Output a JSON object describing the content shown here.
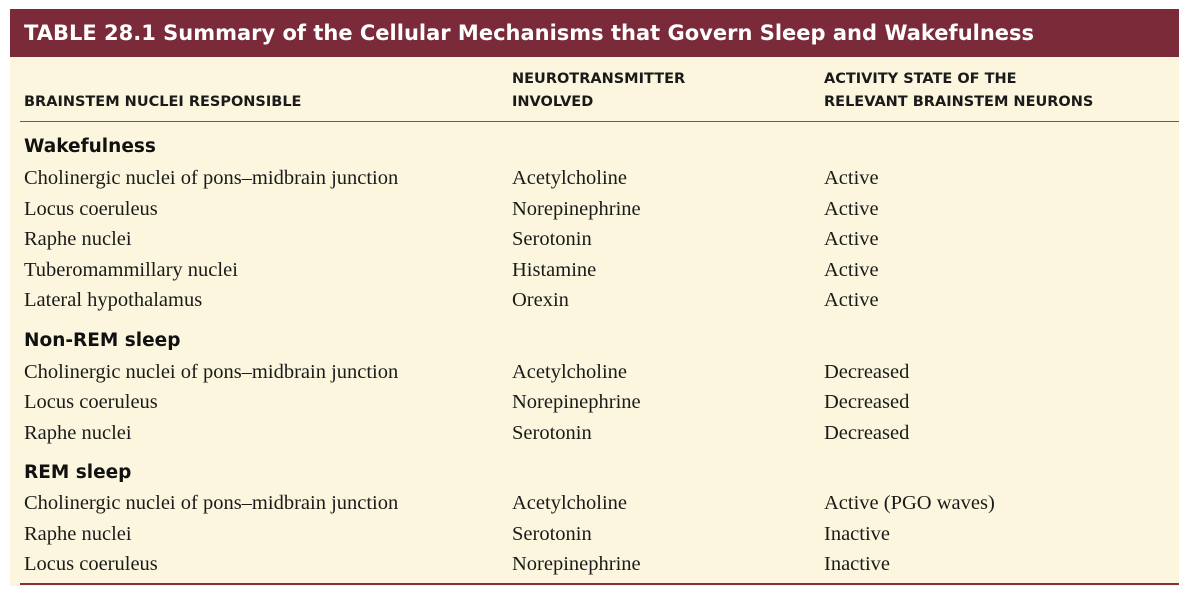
{
  "title": "TABLE 28.1 Summary of the Cellular Mechanisms that Govern Sleep and Wakefulness",
  "headers": {
    "col1": "BRAINSTEM NUCLEI RESPONSIBLE",
    "col2": "NEUROTRANSMITTER\nINVOLVED",
    "col3": "ACTIVITY STATE OF THE\nRELEVANT BRAINSTEM NEURONS"
  },
  "sections": [
    {
      "label": "Wakefulness",
      "rows": [
        {
          "nuclei": "Cholinergic nuclei of pons–midbrain junction",
          "neurotransmitter": "Acetylcholine",
          "activity": "Active"
        },
        {
          "nuclei": "Locus coeruleus",
          "neurotransmitter": "Norepinephrine",
          "activity": "Active"
        },
        {
          "nuclei": "Raphe nuclei",
          "neurotransmitter": "Serotonin",
          "activity": "Active"
        },
        {
          "nuclei": "Tuberomammillary nuclei",
          "neurotransmitter": "Histamine",
          "activity": "Active"
        },
        {
          "nuclei": "Lateral hypothalamus",
          "neurotransmitter": "Orexin",
          "activity": "Active"
        }
      ]
    },
    {
      "label": "Non-REM sleep",
      "rows": [
        {
          "nuclei": "Cholinergic nuclei of pons–midbrain junction",
          "neurotransmitter": "Acetylcholine",
          "activity": "Decreased"
        },
        {
          "nuclei": "Locus coeruleus",
          "neurotransmitter": "Norepinephrine",
          "activity": "Decreased"
        },
        {
          "nuclei": "Raphe nuclei",
          "neurotransmitter": "Serotonin",
          "activity": "Decreased"
        }
      ]
    },
    {
      "label": "REM sleep",
      "rows": [
        {
          "nuclei": "Cholinergic nuclei of pons–midbrain junction",
          "neurotransmitter": "Acetylcholine",
          "activity": "Active (PGO waves)"
        },
        {
          "nuclei": "Raphe nuclei",
          "neurotransmitter": "Serotonin",
          "activity": "Inactive"
        },
        {
          "nuclei": "Locus coeruleus",
          "neurotransmitter": "Norepinephrine",
          "activity": "Inactive"
        }
      ]
    }
  ],
  "colors": {
    "title_bar": "#7a2a38",
    "table_bg": "#fbf6dd",
    "rule": "#8a2e3e"
  }
}
